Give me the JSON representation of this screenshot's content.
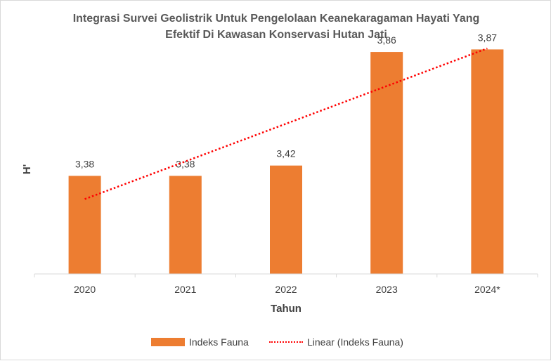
{
  "chart_data": {
    "type": "bar",
    "title_lines": [
      "Integrasi Survei Geolistrik Untuk Pengelolaan Keanekaragaman Hayati Yang",
      "Efektif Di Kawasan Konservasi Hutan Jati"
    ],
    "xlabel": "Tahun",
    "ylabel": "H'",
    "categories": [
      "2020",
      "2021",
      "2022",
      "2023",
      "2024*"
    ],
    "series": [
      {
        "name": "Indeks Fauna",
        "values": [
          3.38,
          3.38,
          3.42,
          3.86,
          3.87
        ],
        "value_labels": [
          "3,38",
          "3,38",
          "3,42",
          "3,86",
          "3,87"
        ],
        "color": "#ED7D31"
      }
    ],
    "trendline": {
      "name": "Linear (Indeks Fauna)",
      "type": "linear",
      "color": "#FF0000",
      "style": "dotted"
    },
    "ylim": [
      3.0,
      3.95
    ],
    "y_axis_visible": false,
    "grid": false,
    "legend_position": "bottom"
  }
}
